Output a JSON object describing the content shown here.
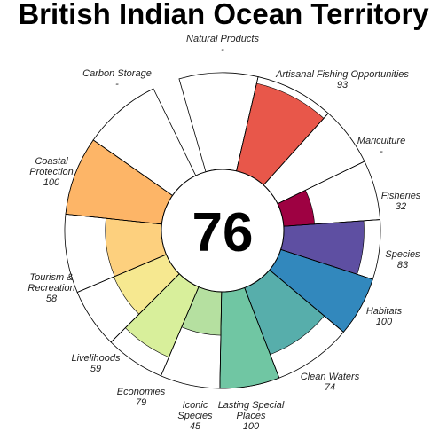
{
  "chart_data": {
    "type": "flower",
    "title": "British Indian Ocean Territory",
    "center_score": "76",
    "ylim": [
      0,
      100
    ],
    "petals": [
      {
        "name": "Natural Products",
        "value_label": "-",
        "value": null,
        "color": null,
        "label_lines": [
          "Natural Products",
          "-"
        ]
      },
      {
        "name": "Artisanal Fishing Opportunities",
        "value_label": "93",
        "value": 93,
        "color": "#e8574a",
        "label_lines": [
          "Artisanal Fishing Opportunities",
          "93"
        ]
      },
      {
        "name": "Mariculture",
        "value_label": "-",
        "value": null,
        "color": null,
        "label_lines": [
          "Mariculture",
          "-"
        ]
      },
      {
        "name": "Fisheries",
        "value_label": "32",
        "value": 32,
        "color": "#9e0142",
        "label_lines": [
          "Fisheries",
          "32"
        ]
      },
      {
        "name": "Species",
        "value_label": "83",
        "value": 83,
        "color": "#5e4fa2",
        "label_lines": [
          "Species",
          "83"
        ]
      },
      {
        "name": "Habitats",
        "value_label": "100",
        "value": 100,
        "color": "#3288bd",
        "label_lines": [
          "Habitats",
          "100"
        ]
      },
      {
        "name": "Clean Waters",
        "value_label": "74",
        "value": 74,
        "color": "#57aeab",
        "label_lines": [
          "Clean Waters",
          "74"
        ]
      },
      {
        "name": "Lasting Special Places",
        "value_label": "100",
        "value": 100,
        "color": "#70c6a3",
        "label_lines": [
          "Lasting Special",
          "Places",
          "100"
        ]
      },
      {
        "name": "Iconic Species",
        "value_label": "45",
        "value": 45,
        "color": "#b5e0a0",
        "label_lines": [
          "Iconic",
          "Species",
          "45"
        ]
      },
      {
        "name": "Economies",
        "value_label": "79",
        "value": 79,
        "color": "#d8ef9b",
        "label_lines": [
          "Economies",
          "79"
        ]
      },
      {
        "name": "Livelihoods",
        "value_label": "59",
        "value": 59,
        "color": "#f6e890",
        "label_lines": [
          "Livelihoods",
          "59"
        ]
      },
      {
        "name": "Tourism & Recreation",
        "value_label": "58",
        "value": 58,
        "color": "#fdd07e",
        "label_lines": [
          "Tourism &",
          "Recreation",
          "58"
        ]
      },
      {
        "name": "Coastal Protection",
        "value_label": "100",
        "value": 100,
        "color": "#fdb567",
        "label_lines": [
          "Coastal",
          "Protection",
          "100"
        ]
      },
      {
        "name": "Carbon Storage",
        "value_label": "-",
        "value": null,
        "color": null,
        "label_lines": [
          "Carbon Storage",
          "-"
        ]
      }
    ]
  }
}
